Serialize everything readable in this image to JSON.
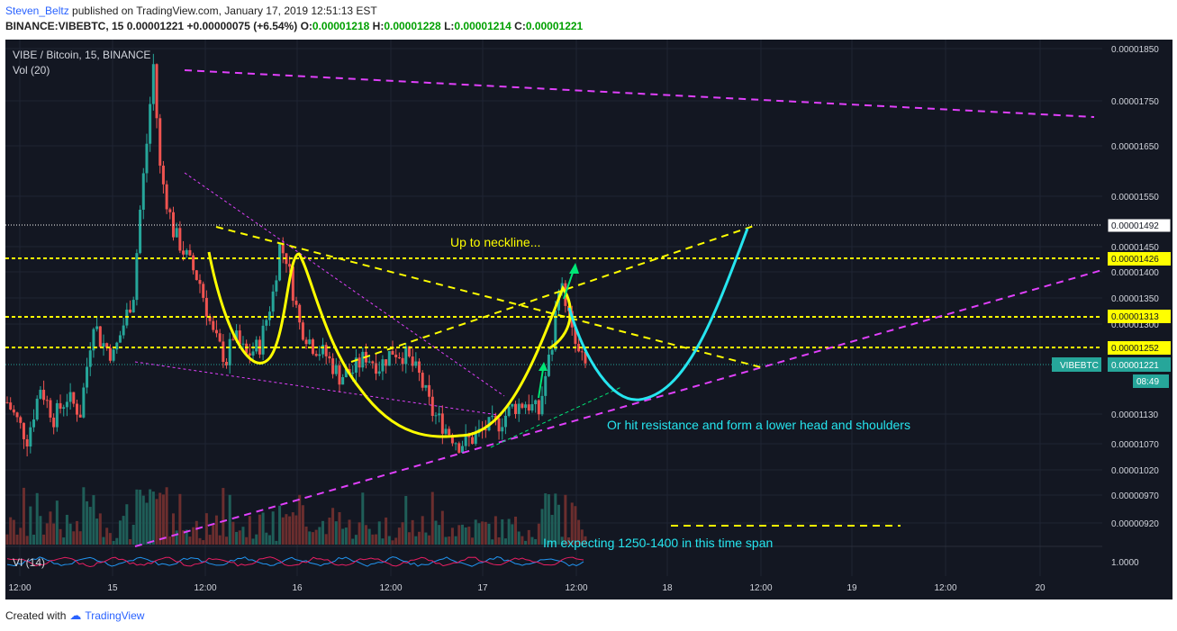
{
  "header": {
    "author": "Steven_Beltz",
    "published_text": " published on TradingView.com, January 17, 2019 12:51:13 EST",
    "symbol_line": "BINANCE:VIBEBTC, 15",
    "last_price": "0.00001221",
    "change": "+0.00000075 (+6.54%)",
    "o_label": "O:",
    "o_value": "0.00001218",
    "h_label": "H:",
    "h_value": "0.00001228",
    "l_label": "L:",
    "l_value": "0.00001214",
    "c_label": "C:",
    "c_value": "0.00001221"
  },
  "chart_title": "VIBE / Bitcoin, 15, BINANCE",
  "vol_label": "Vol (20)",
  "vi_label": "VI (14)",
  "vi_axis_label": "1.0000",
  "annotations": {
    "neckline": "Up to neckline...",
    "resistance": "Or hit resistance and form a lower head and shoulders",
    "expecting": "Im expecting 1250-1400 in this time span"
  },
  "price_tags": {
    "p1492": "0.00001492",
    "p1426": "0.00001426",
    "p1313": "0.00001313",
    "p1252": "0.00001252",
    "symbol": "VIBEBTC",
    "current": "0.00001221",
    "countdown": "08:49"
  },
  "footer": {
    "created_with": "Created with",
    "brand": "TradingView"
  },
  "colors": {
    "background": "#131722",
    "up": "#26a69a",
    "down": "#ef5350",
    "annotation_yellow": "#ffff00",
    "annotation_magenta": "#e040fb",
    "annotation_cyan": "#26e5ef",
    "annotation_green": "#00e676",
    "current_price_tag": "#26a69a"
  },
  "chart_data": {
    "type": "candlestick",
    "symbol": "VIBE / Bitcoin",
    "interval": "15",
    "exchange": "BINANCE",
    "y_ticks": [
      "0.00001850",
      "0.00001750",
      "0.00001650",
      "0.00001550",
      "0.00001450",
      "0.00001400",
      "0.00001350",
      "0.00001300",
      "0.00001130",
      "0.00001070",
      "0.00001020",
      "0.00000970",
      "0.00000920"
    ],
    "x_ticks": [
      "12:00",
      "15",
      "12:00",
      "16",
      "12:00",
      "17",
      "12:00",
      "18",
      "12:00",
      "19",
      "12:00",
      "20"
    ],
    "horizontal_levels": [
      1.492e-05,
      1.426e-05,
      1.313e-05,
      1.252e-05
    ],
    "current_price": 1.221e-05,
    "price_path": [
      [
        0,
        1.15e-05
      ],
      [
        3,
        1.08e-05
      ],
      [
        5,
        1.18e-05
      ],
      [
        7,
        1.12e-05
      ],
      [
        9,
        1.16e-05
      ],
      [
        11,
        1.13e-05
      ],
      [
        12,
        1.22e-05
      ],
      [
        13,
        1.31e-05
      ],
      [
        14,
        1.27e-05
      ],
      [
        16,
        1.24e-05
      ],
      [
        18,
        1.32e-05
      ],
      [
        19,
        1.36e-05
      ],
      [
        20,
        1.52e-05
      ],
      [
        21,
        1.65e-05
      ],
      [
        22,
        1.8e-05
      ],
      [
        23,
        1.6e-05
      ],
      [
        25,
        1.48e-05
      ],
      [
        27,
        1.43e-05
      ],
      [
        29,
        1.38e-05
      ],
      [
        31,
        1.28e-05
      ],
      [
        33,
        1.23e-05
      ],
      [
        34,
        1.28e-05
      ],
      [
        36,
        1.24e-05
      ],
      [
        38,
        1.26e-05
      ],
      [
        40,
        1.36e-05
      ],
      [
        41,
        1.45e-05
      ],
      [
        42,
        1.43e-05
      ],
      [
        44,
        1.3e-05
      ],
      [
        46,
        1.26e-05
      ],
      [
        48,
        1.24e-05
      ],
      [
        50,
        1.2e-05
      ],
      [
        52,
        1.21e-05
      ],
      [
        54,
        1.24e-05
      ],
      [
        56,
        1.22e-05
      ],
      [
        58,
        1.25e-05
      ],
      [
        60,
        1.24e-05
      ],
      [
        62,
        1.2e-05
      ],
      [
        64,
        1.13e-05
      ],
      [
        66,
        1.1e-05
      ],
      [
        68,
        1.07e-05
      ],
      [
        70,
        1.08e-05
      ],
      [
        72,
        1.1e-05
      ],
      [
        74,
        1.11e-05
      ],
      [
        76,
        1.14e-05
      ],
      [
        78,
        1.15e-05
      ],
      [
        80,
        1.13e-05
      ],
      [
        81,
        1.2e-05
      ],
      [
        82,
        1.26e-05
      ],
      [
        83,
        1.38e-05
      ],
      [
        84,
        1.35e-05
      ],
      [
        85,
        1.28e-05
      ],
      [
        86,
        1.24e-05
      ],
      [
        87,
        1.22e-05
      ]
    ]
  }
}
